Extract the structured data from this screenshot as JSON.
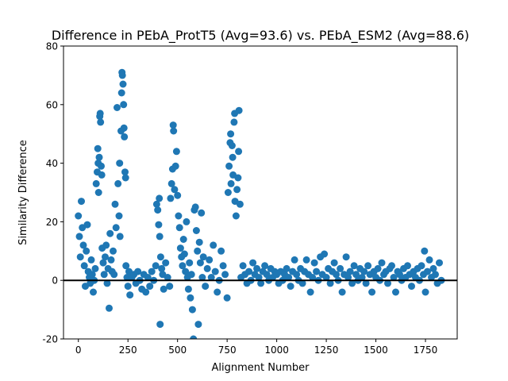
{
  "chart_data": {
    "type": "scatter",
    "title": "Difference in PEbA_ProtT5 (Avg=93.6) vs. PEbA_ESM2 (Avg=88.6)",
    "xlabel": "Alignment Number",
    "ylabel": "Similarity Difference",
    "xlim": [
      -75,
      1910
    ],
    "ylim": [
      -20,
      80
    ],
    "xticks": [
      0,
      250,
      500,
      750,
      1000,
      1250,
      1500,
      1750
    ],
    "yticks": [
      -20,
      0,
      20,
      40,
      60,
      80
    ],
    "reference_line_y": 0,
    "grid": false,
    "colors": {
      "points": "#1f77b4",
      "reference_line": "#000000"
    },
    "series": [
      {
        "values_summary": "Roughly 1830 alignments; one point per alignment",
        "points": [
          [
            0,
            22
          ],
          [
            5,
            15
          ],
          [
            10,
            8
          ],
          [
            15,
            27
          ],
          [
            20,
            18
          ],
          [
            25,
            12
          ],
          [
            30,
            5
          ],
          [
            35,
            -2
          ],
          [
            40,
            10
          ],
          [
            45,
            19
          ],
          [
            50,
            3
          ],
          [
            55,
            1
          ],
          [
            60,
            -1
          ],
          [
            65,
            7
          ],
          [
            70,
            2
          ],
          [
            75,
            -4
          ],
          [
            80,
            0
          ],
          [
            85,
            4
          ],
          [
            90,
            33
          ],
          [
            95,
            37
          ],
          [
            98,
            45
          ],
          [
            100,
            40
          ],
          [
            102,
            30
          ],
          [
            105,
            42
          ],
          [
            108,
            56
          ],
          [
            110,
            57
          ],
          [
            112,
            54
          ],
          [
            115,
            39
          ],
          [
            118,
            36
          ],
          [
            120,
            11
          ],
          [
            125,
            6
          ],
          [
            130,
            2
          ],
          [
            135,
            8
          ],
          [
            140,
            12
          ],
          [
            145,
            -1
          ],
          [
            150,
            4
          ],
          [
            155,
            -9.5
          ],
          [
            160,
            16
          ],
          [
            165,
            7
          ],
          [
            170,
            3
          ],
          [
            175,
            10
          ],
          [
            180,
            2
          ],
          [
            185,
            26
          ],
          [
            190,
            18
          ],
          [
            195,
            59
          ],
          [
            200,
            33
          ],
          [
            205,
            22
          ],
          [
            208,
            40
          ],
          [
            210,
            15
          ],
          [
            215,
            51
          ],
          [
            218,
            64
          ],
          [
            220,
            71
          ],
          [
            222,
            70
          ],
          [
            225,
            67
          ],
          [
            228,
            60
          ],
          [
            230,
            52
          ],
          [
            232,
            49
          ],
          [
            235,
            37
          ],
          [
            238,
            35
          ],
          [
            240,
            5
          ],
          [
            245,
            1
          ],
          [
            250,
            -2
          ],
          [
            255,
            3
          ],
          [
            260,
            -5
          ],
          [
            270,
            1
          ],
          [
            280,
            2
          ],
          [
            290,
            -1
          ],
          [
            300,
            3
          ],
          [
            310,
            0
          ],
          [
            320,
            -3
          ],
          [
            330,
            2
          ],
          [
            340,
            -4
          ],
          [
            350,
            1
          ],
          [
            360,
            -2
          ],
          [
            370,
            3
          ],
          [
            380,
            0
          ],
          [
            390,
            5
          ],
          [
            395,
            26
          ],
          [
            400,
            24
          ],
          [
            405,
            19
          ],
          [
            408,
            28
          ],
          [
            410,
            15
          ],
          [
            412,
            -15
          ],
          [
            415,
            8
          ],
          [
            420,
            4
          ],
          [
            425,
            2
          ],
          [
            430,
            -3
          ],
          [
            440,
            6
          ],
          [
            450,
            1
          ],
          [
            460,
            -2
          ],
          [
            465,
            28
          ],
          [
            470,
            33
          ],
          [
            475,
            38
          ],
          [
            478,
            53
          ],
          [
            480,
            51
          ],
          [
            485,
            31
          ],
          [
            490,
            39
          ],
          [
            495,
            44
          ],
          [
            500,
            29
          ],
          [
            505,
            22
          ],
          [
            510,
            18
          ],
          [
            515,
            11
          ],
          [
            520,
            8
          ],
          [
            525,
            5
          ],
          [
            530,
            14
          ],
          [
            535,
            9
          ],
          [
            540,
            3
          ],
          [
            545,
            20
          ],
          [
            550,
            1
          ],
          [
            555,
            -3
          ],
          [
            560,
            6
          ],
          [
            565,
            -6
          ],
          [
            570,
            2
          ],
          [
            575,
            -10
          ],
          [
            580,
            -20
          ],
          [
            585,
            24
          ],
          [
            590,
            25
          ],
          [
            595,
            17
          ],
          [
            600,
            10
          ],
          [
            605,
            -15
          ],
          [
            610,
            13
          ],
          [
            615,
            6
          ],
          [
            620,
            23
          ],
          [
            625,
            1
          ],
          [
            630,
            8
          ],
          [
            640,
            -2
          ],
          [
            650,
            4
          ],
          [
            660,
            7
          ],
          [
            670,
            1
          ],
          [
            680,
            12
          ],
          [
            690,
            3
          ],
          [
            700,
            -4
          ],
          [
            710,
            0
          ],
          [
            720,
            10
          ],
          [
            730,
            5
          ],
          [
            740,
            2
          ],
          [
            750,
            -6
          ],
          [
            755,
            30
          ],
          [
            760,
            39
          ],
          [
            765,
            47
          ],
          [
            768,
            50
          ],
          [
            770,
            33
          ],
          [
            775,
            46
          ],
          [
            778,
            42
          ],
          [
            780,
            36
          ],
          [
            785,
            54
          ],
          [
            788,
            57
          ],
          [
            790,
            27
          ],
          [
            795,
            22
          ],
          [
            800,
            31
          ],
          [
            805,
            35
          ],
          [
            808,
            44
          ],
          [
            810,
            58
          ],
          [
            815,
            26
          ],
          [
            820,
            1
          ],
          [
            830,
            5
          ],
          [
            840,
            2
          ],
          [
            850,
            -1
          ],
          [
            860,
            3
          ],
          [
            870,
            0
          ],
          [
            880,
            6
          ],
          [
            890,
            2
          ],
          [
            900,
            4
          ],
          [
            910,
            1
          ],
          [
            920,
            -1
          ],
          [
            930,
            3
          ],
          [
            940,
            5
          ],
          [
            950,
            2
          ],
          [
            960,
            0
          ],
          [
            970,
            4
          ],
          [
            980,
            1
          ],
          [
            990,
            3
          ],
          [
            1000,
            2
          ],
          [
            1010,
            -1
          ],
          [
            1020,
            3
          ],
          [
            1030,
            0
          ],
          [
            1040,
            2
          ],
          [
            1050,
            4
          ],
          [
            1060,
            1
          ],
          [
            1070,
            -2
          ],
          [
            1080,
            3
          ],
          [
            1090,
            7
          ],
          [
            1100,
            2
          ],
          [
            1110,
            0
          ],
          [
            1120,
            4
          ],
          [
            1130,
            -1
          ],
          [
            1140,
            3
          ],
          [
            1150,
            7
          ],
          [
            1160,
            2
          ],
          [
            1170,
            -4
          ],
          [
            1180,
            1
          ],
          [
            1190,
            6
          ],
          [
            1200,
            3
          ],
          [
            1210,
            0
          ],
          [
            1220,
            8
          ],
          [
            1230,
            2
          ],
          [
            1240,
            9
          ],
          [
            1250,
            1
          ],
          [
            1260,
            4
          ],
          [
            1270,
            -1
          ],
          [
            1280,
            3
          ],
          [
            1290,
            6
          ],
          [
            1300,
            2
          ],
          [
            1310,
            0
          ],
          [
            1320,
            4
          ],
          [
            1330,
            -4
          ],
          [
            1340,
            2
          ],
          [
            1350,
            8
          ],
          [
            1360,
            1
          ],
          [
            1370,
            3
          ],
          [
            1380,
            -1
          ],
          [
            1390,
            5
          ],
          [
            1400,
            2
          ],
          [
            1410,
            0
          ],
          [
            1420,
            4
          ],
          [
            1430,
            1
          ],
          [
            1440,
            3
          ],
          [
            1450,
            -1
          ],
          [
            1460,
            5
          ],
          [
            1470,
            2
          ],
          [
            1480,
            -4
          ],
          [
            1490,
            3
          ],
          [
            1500,
            1
          ],
          [
            1510,
            4
          ],
          [
            1520,
            0
          ],
          [
            1530,
            6
          ],
          [
            1540,
            2
          ],
          [
            1550,
            3
          ],
          [
            1560,
            -1
          ],
          [
            1570,
            4
          ],
          [
            1580,
            5
          ],
          [
            1590,
            1
          ],
          [
            1600,
            -4
          ],
          [
            1610,
            3
          ],
          [
            1620,
            2
          ],
          [
            1630,
            0
          ],
          [
            1640,
            4
          ],
          [
            1650,
            1
          ],
          [
            1660,
            5
          ],
          [
            1670,
            2
          ],
          [
            1680,
            -2
          ],
          [
            1690,
            3
          ],
          [
            1700,
            1
          ],
          [
            1710,
            4
          ],
          [
            1720,
            0
          ],
          [
            1730,
            5
          ],
          [
            1740,
            2
          ],
          [
            1745,
            10
          ],
          [
            1750,
            -4
          ],
          [
            1760,
            3
          ],
          [
            1770,
            7
          ],
          [
            1780,
            1
          ],
          [
            1790,
            4
          ],
          [
            1800,
            2
          ],
          [
            1810,
            -1
          ],
          [
            1820,
            6
          ],
          [
            1830,
            0
          ]
        ]
      }
    ]
  }
}
